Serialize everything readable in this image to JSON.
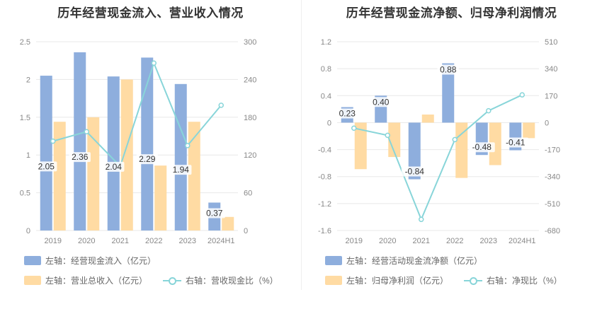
{
  "colors": {
    "bar_primary": "#8eaedd",
    "bar_secondary": "#ffdba3",
    "line": "#88d5d9",
    "grid": "#e8e8e8",
    "axis_text": "#888888",
    "label_bg": "#ffffff"
  },
  "chart_data": [
    {
      "type": "bar",
      "title": "历年经营现金流入、营业收入情况",
      "categories": [
        "2019",
        "2020",
        "2021",
        "2022",
        "2023",
        "2024H1"
      ],
      "left_axis": {
        "ylim": [
          0,
          2.5
        ],
        "ticks": [
          "0",
          "0.5",
          "1",
          "1.5",
          "2",
          "2.5"
        ]
      },
      "right_axis": {
        "ylim": [
          0,
          300
        ],
        "ticks": [
          "0",
          "60",
          "120",
          "180",
          "240",
          "300"
        ]
      },
      "series": [
        {
          "name": "左轴：经营现金流入（亿元）",
          "kind": "bar",
          "axis": "left",
          "color": "#8eaedd",
          "values": [
            2.05,
            2.36,
            2.04,
            2.29,
            1.94,
            0.37
          ],
          "labels": [
            "2.05",
            "2.36",
            "2.04",
            "2.29",
            "1.94",
            "0.37"
          ]
        },
        {
          "name": "左轴：营业总收入（亿元）",
          "kind": "bar",
          "axis": "left",
          "color": "#ffdba3",
          "values": [
            1.44,
            1.5,
            2.0,
            0.86,
            1.44,
            0.18
          ]
        },
        {
          "name": "右轴：营收现金比（%）",
          "kind": "line",
          "axis": "right",
          "color": "#88d5d9",
          "values": [
            142,
            157,
            102,
            266,
            135,
            199
          ]
        }
      ],
      "legend_rows": [
        [
          0
        ],
        [
          1,
          2
        ]
      ]
    },
    {
      "type": "bar",
      "title": "历年经营现金流净额、归母净利润情况",
      "categories": [
        "2019",
        "2020",
        "2021",
        "2022",
        "2023",
        "2024H1"
      ],
      "left_axis": {
        "ylim": [
          -1.6,
          1.2
        ],
        "ticks": [
          "-1.6",
          "-1.2",
          "-0.8",
          "-0.4",
          "0",
          "0.4",
          "0.8",
          "1.2"
        ]
      },
      "right_axis": {
        "ylim": [
          -680,
          510
        ],
        "ticks": [
          "-680",
          "-510",
          "-340",
          "-170",
          "0",
          "170",
          "340",
          "510"
        ]
      },
      "series": [
        {
          "name": "左轴：经营活动现金流净额（亿元）",
          "kind": "bar",
          "axis": "left",
          "color": "#8eaedd",
          "values": [
            0.23,
            0.4,
            -0.84,
            0.88,
            -0.48,
            -0.41
          ],
          "labels": [
            "0.23",
            "0.40",
            "-0.84",
            "0.88",
            "-0.48",
            "-0.41"
          ]
        },
        {
          "name": "左轴：归母净利润（亿元）",
          "kind": "bar",
          "axis": "left",
          "color": "#ffdba3",
          "values": [
            -0.69,
            -0.51,
            0.12,
            -0.82,
            -0.63,
            -0.23
          ]
        },
        {
          "name": "右轴：净现比（%）",
          "kind": "line",
          "axis": "right",
          "color": "#88d5d9",
          "values": [
            -35,
            -80,
            -610,
            -107,
            75,
            175
          ]
        }
      ],
      "legend_rows": [
        [
          0
        ],
        [
          1,
          2
        ]
      ]
    }
  ]
}
